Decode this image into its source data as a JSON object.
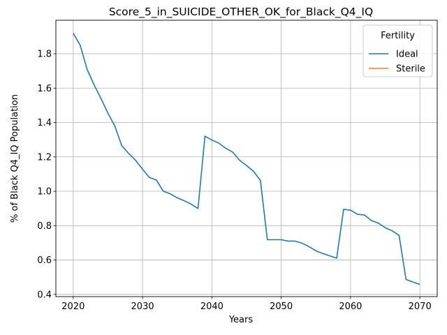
{
  "chart_data": {
    "type": "line",
    "title": "Score_5_in_SUICIDE_OTHER_OK_for_Black_Q4_IQ",
    "xlabel": "Years",
    "ylabel": "% of Black Q4_IQ Population",
    "xlim": [
      2017.5,
      2072.5
    ],
    "ylim": [
      0.387,
      1.995
    ],
    "xticks": [
      2020,
      2030,
      2040,
      2050,
      2060,
      2070
    ],
    "xtick_labels": [
      "2020",
      "2030",
      "2040",
      "2050",
      "2060",
      "2070"
    ],
    "yticks": [
      0.4,
      0.6,
      0.8,
      1.0,
      1.2,
      1.4,
      1.6,
      1.8
    ],
    "ytick_labels": [
      "0.4",
      "0.6",
      "0.8",
      "1.0",
      "1.2",
      "1.4",
      "1.6",
      "1.8"
    ],
    "grid": true,
    "legend": {
      "title": "Fertility",
      "placement": "top-right"
    },
    "series": [
      {
        "name": "Ideal",
        "color": "#1f77b4",
        "x": [
          2020,
          2021,
          2022,
          2023,
          2024,
          2025,
          2026,
          2027,
          2028,
          2029,
          2030,
          2031,
          2032,
          2033,
          2034,
          2035,
          2036,
          2037,
          2038,
          2039,
          2040,
          2041,
          2042,
          2043,
          2044,
          2045,
          2046,
          2047,
          2048,
          2049,
          2050,
          2051,
          2052,
          2053,
          2054,
          2055,
          2056,
          2057,
          2058,
          2059,
          2060,
          2061,
          2062,
          2063,
          2064,
          2065,
          2066,
          2067,
          2068,
          2069,
          2070
        ],
        "y": [
          1.92,
          1.85,
          1.71,
          1.62,
          1.54,
          1.455,
          1.38,
          1.265,
          1.22,
          1.18,
          1.128,
          1.08,
          1.065,
          1.0,
          0.985,
          0.962,
          0.945,
          0.925,
          0.9,
          1.32,
          1.298,
          1.28,
          1.25,
          1.228,
          1.18,
          1.15,
          1.116,
          1.063,
          0.718,
          0.718,
          0.718,
          0.71,
          0.71,
          0.698,
          0.678,
          0.653,
          0.638,
          0.624,
          0.611,
          0.895,
          0.89,
          0.866,
          0.862,
          0.83,
          0.815,
          0.788,
          0.77,
          0.743,
          0.487,
          0.472,
          0.458
        ]
      },
      {
        "name": "Sterile",
        "color": "#ff7f0e",
        "x": [],
        "y": []
      }
    ]
  }
}
